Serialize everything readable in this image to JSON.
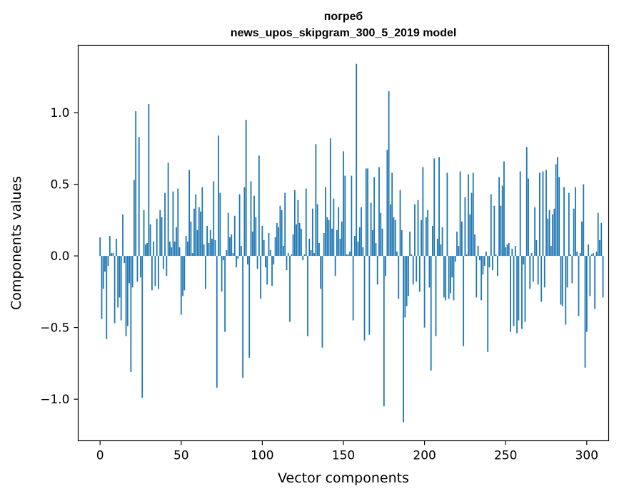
{
  "chart_data": {
    "type": "bar",
    "title": "погреб",
    "subtitle": "news_upos_skipgram_300_5_2019 model",
    "xlabel": "Vector components",
    "ylabel": "Components values",
    "xlim": [
      -13.5,
      313.5
    ],
    "ylim": [
      -1.29,
      1.47
    ],
    "xticks": [
      0,
      50,
      100,
      150,
      200,
      250,
      300
    ],
    "xtick_labels": [
      "0",
      "50",
      "100",
      "150",
      "200",
      "250",
      "300"
    ],
    "yticks": [
      -1.0,
      -0.5,
      0.0,
      0.5,
      1.0
    ],
    "ytick_labels": [
      "−1.0",
      "−0.5",
      "0.0",
      "0.5",
      "1.0"
    ],
    "bar_color": "#1f77b4",
    "grid": false,
    "values": [
      0.13,
      -0.44,
      -0.23,
      -0.11,
      -0.58,
      -0.07,
      0.14,
      0.02,
      0.02,
      -0.47,
      0.12,
      -0.36,
      -0.29,
      -0.45,
      0.29,
      -0.05,
      -0.56,
      -0.49,
      -0.19,
      -0.81,
      -0.22,
      0.53,
      1.01,
      -0.18,
      0.83,
      -0.15,
      -0.99,
      0.32,
      0.08,
      0.09,
      1.06,
      0.22,
      -0.24,
      0.1,
      -0.21,
      0.26,
      -0.23,
      0.32,
      0.27,
      -0.09,
      0.44,
      -0.14,
      0.65,
      0.1,
      0.06,
      0.45,
      0.1,
      0.2,
      0.47,
      0.06,
      -0.41,
      -0.28,
      -0.24,
      0.14,
      0.1,
      0.6,
      0.24,
      0.02,
      0.33,
      0.43,
      0.18,
      0.34,
      0.31,
      0.48,
      0.08,
      -0.23,
      0.21,
      0.09,
      0.18,
      0.12,
      0.52,
      0.11,
      -0.92,
      0.84,
      0.44,
      -0.25,
      -0.03,
      -0.53,
      0.04,
      0.3,
      0.13,
      0.15,
      0.02,
      0.28,
      -0.08,
      -0.02,
      0.43,
      0.07,
      -0.85,
      0.48,
      0.95,
      -0.06,
      -0.71,
      0.52,
      0.17,
      0.42,
      0.27,
      -0.09,
      0.7,
      -0.3,
      0.21,
      0.11,
      -0.08,
      -0.2,
      0.16,
      0.04,
      -0.21,
      -0.06,
      0.13,
      0.23,
      0.2,
      0.35,
      0.32,
      0.07,
      0.44,
      -0.1,
      0.02,
      -0.46,
      0.01,
      0.15,
      0.46,
      0.22,
      0.39,
      0.23,
      0.19,
      -0.03,
      0.01,
      0.47,
      -0.56,
      0.12,
      0.04,
      0.33,
      0.02,
      0.78,
      0.36,
      0.09,
      -0.23,
      -0.64,
      0.16,
      0.48,
      0.27,
      0.25,
      0.82,
      0.19,
      0.4,
      -0.14,
      0.18,
      0.34,
      0.12,
      0.24,
      0.73,
      0.56,
      0.01,
      0.01,
      0.03,
      0.56,
      -0.45,
      0.14,
      1.34,
      0.1,
      0.2,
      0.34,
      0.06,
      -0.59,
      0.61,
      0.61,
      -0.55,
      0.37,
      0.18,
      0.55,
      0.09,
      -0.2,
      0.62,
      0.3,
      0.19,
      -1.05,
      -0.14,
      0.74,
      1.15,
      0.36,
      0.58,
      0.27,
      0.25,
      0.03,
      -0.3,
      0.46,
      0.18,
      -1.16,
      -0.43,
      -0.35,
      -0.28,
      0.17,
      0.01,
      -0.2,
      0.36,
      -0.18,
      0.39,
      -0.25,
      0.25,
      0.62,
      -0.5,
      0.27,
      0.32,
      -0.22,
      -0.8,
      0.21,
      0.68,
      -0.56,
      0.12,
      0.69,
      0.08,
      0.2,
      -0.29,
      -0.31,
      0.58,
      -0.3,
      -0.26,
      -0.15,
      -0.31,
      -0.04,
      0.17,
      0.07,
      0.59,
      0.24,
      -0.63,
      0.41,
      0.01,
      0.57,
      0.29,
      0.44,
      0.58,
      0.15,
      -0.29,
      0.07,
      -0.03,
      -0.31,
      -0.13,
      -0.07,
      0.03,
      -0.67,
      -0.08,
      0.43,
      -0.1,
      0.35,
      0.01,
      -0.14,
      0.55,
      0.35,
      0.49,
      0.66,
      0.06,
      0.08,
      0.09,
      -0.53,
      0.05,
      -0.49,
      0.07,
      -0.54,
      -0.45,
      0.59,
      -0.51,
      -0.06,
      -0.46,
      0.76,
      0.54,
      -0.23,
      0.02,
      -0.18,
      0.34,
      0.11,
      -0.2,
      0.58,
      -0.32,
      0.59,
      -0.22,
      0.6,
      0.26,
      0.32,
      0.07,
      0.29,
      0.33,
      0.64,
      0.69,
      0.55,
      -0.34,
      -0.35,
      0.48,
      -0.48,
      -0.22,
      0.44,
      0.01,
      -0.19,
      0.33,
      0.48,
      0.03,
      -0.42,
      0.02,
      0.24,
      0.5,
      -0.78,
      -0.53,
      0.08,
      -0.28,
      0.01,
      0.02,
      -0.37,
      0.03,
      0.3,
      0.11,
      0.23,
      -0.29
    ]
  }
}
